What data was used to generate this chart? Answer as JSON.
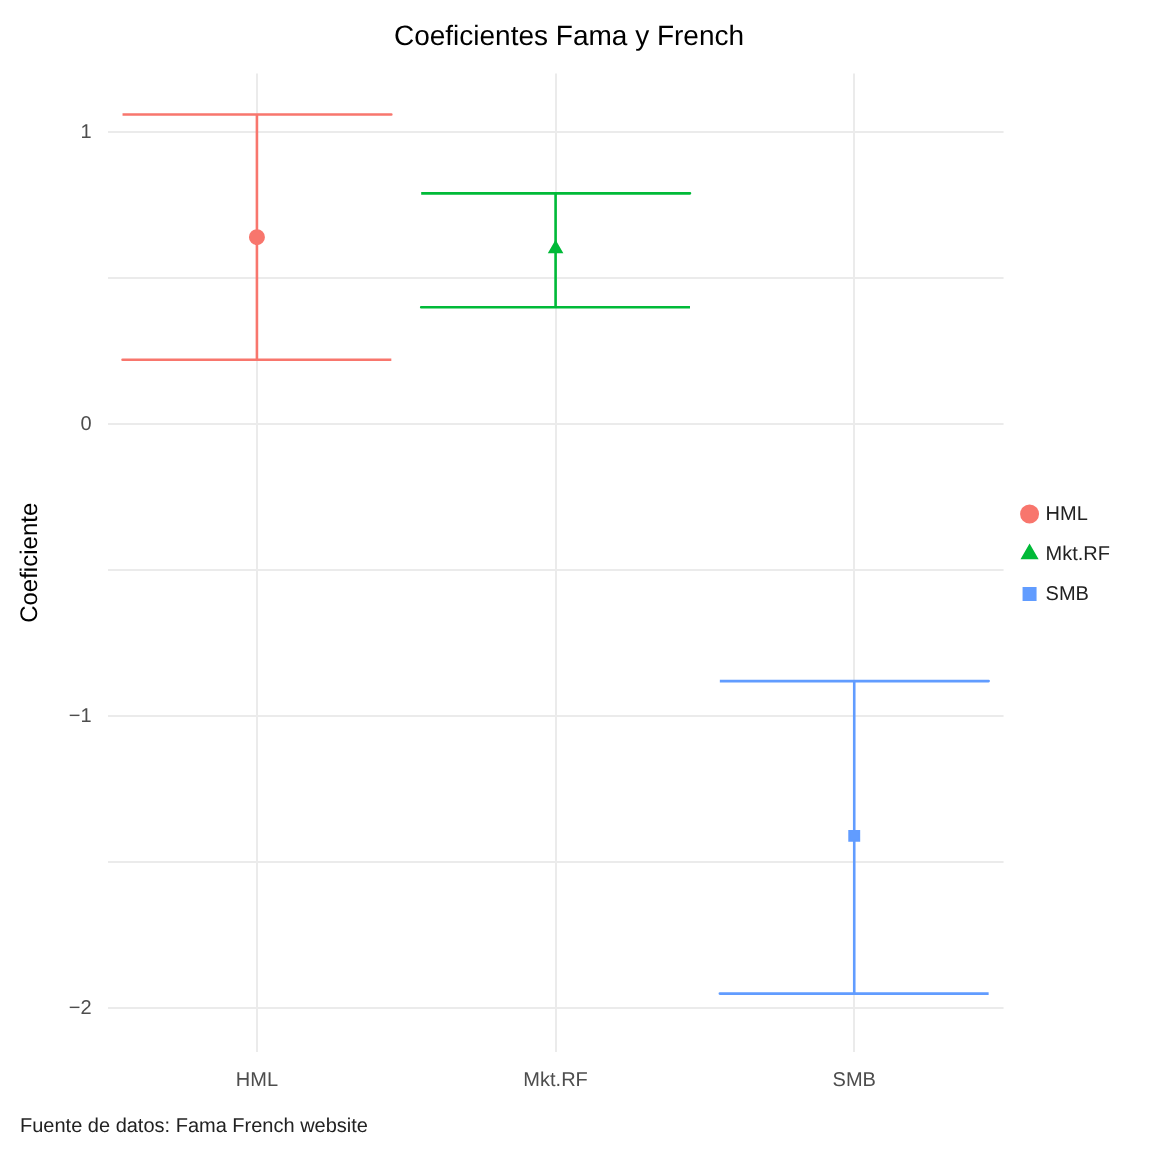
{
  "chart_data": {
    "type": "scatter",
    "title": "Coeficientes Fama y French",
    "ylabel": "Coeficiente",
    "categories": [
      "HML",
      "Mkt.RF",
      "SMB"
    ],
    "series": [
      {
        "name": "HML",
        "color": "#f8766d",
        "marker": "circle",
        "values": [
          0.64,
          null,
          null
        ],
        "errors": [
          [
            0.22,
            1.06
          ],
          null,
          null
        ]
      },
      {
        "name": "Mkt.RF",
        "color": "#00ba38",
        "marker": "triangle",
        "values": [
          null,
          0.6,
          null
        ],
        "errors": [
          null,
          [
            0.4,
            0.79
          ],
          null
        ]
      },
      {
        "name": "SMB",
        "color": "#619cff",
        "marker": "square",
        "values": [
          null,
          null,
          -1.41
        ],
        "errors": [
          null,
          null,
          [
            -1.95,
            -0.88
          ]
        ]
      }
    ],
    "ylim": [
      -2.15,
      1.2
    ],
    "yticks": [
      -2,
      {
        "value": -1.5,
        "label": null
      },
      -1,
      {
        "value": -0.5,
        "label": null
      },
      0,
      {
        "value": 0.5,
        "label": null
      },
      1
    ],
    "grid": true,
    "legend": "right",
    "annotations": [
      "Fuente de datos: Fama French website"
    ]
  }
}
